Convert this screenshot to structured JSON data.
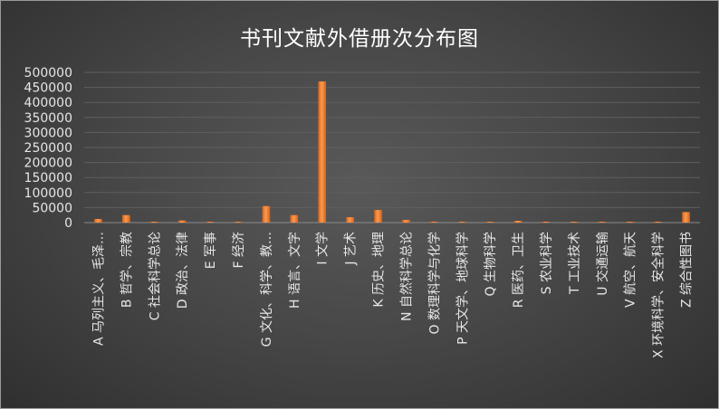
{
  "chart_data": {
    "type": "bar",
    "title": "书刊文献外借册次分布图",
    "xlabel": "",
    "ylabel": "",
    "ylim": [
      0,
      500000
    ],
    "yticks": [
      "500000",
      "450000",
      "400000",
      "350000",
      "300000",
      "250000",
      "200000",
      "150000",
      "100000",
      "50000",
      "0"
    ],
    "grid": true,
    "legend": "none",
    "bar_color": "#ed7d31",
    "categories": [
      "A 马列主义、毛泽…",
      "B 哲学、宗教",
      "C 社会科学总论",
      "D 政治、法律",
      "E 军事",
      "F 经济",
      "G 文化、科学、教…",
      "H 语言、文字",
      "I 文学",
      "J 艺术",
      "K 历史、地理",
      "N 自然科学总论",
      "O 数理科学与化学",
      "P 天文学、地球科学",
      "Q 生物科学",
      "R 医药、卫生",
      "S 农业科学",
      "T 工业技术",
      "U 交通运输",
      "V 航空、航天",
      "X 环境科学、安全科学",
      "Z 综合性图书"
    ],
    "values": [
      12000,
      25000,
      3000,
      7000,
      3000,
      3000,
      55000,
      25000,
      470000,
      18000,
      42000,
      9000,
      3000,
      3000,
      3000,
      6000,
      3000,
      3000,
      3000,
      3000,
      3000,
      35000
    ]
  }
}
